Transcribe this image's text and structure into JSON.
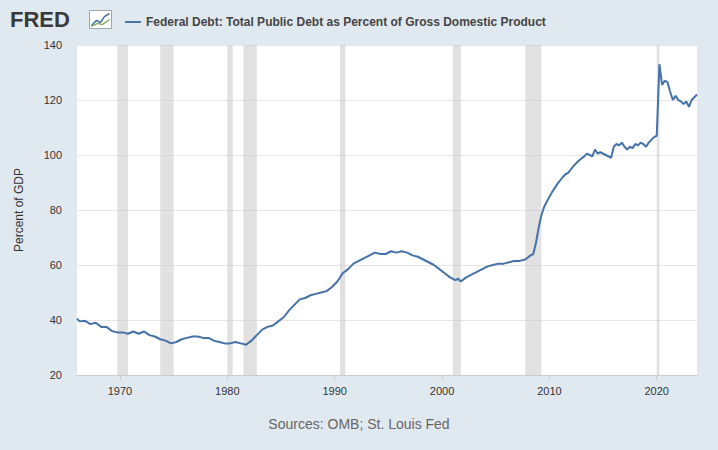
{
  "chart_data": {
    "type": "line",
    "logo": "FRED",
    "ylabel": "Percent of GDP",
    "source": "Sources: OMB; St. Louis Fed",
    "legend": "top-left",
    "grid": true,
    "xlim": [
      1966,
      2023.75
    ],
    "xticks": [
      1970,
      1980,
      1990,
      2000,
      2010,
      2020
    ],
    "ylim": [
      20,
      140
    ],
    "yticks": [
      20,
      40,
      60,
      80,
      100,
      120,
      140
    ],
    "recessions": [
      [
        1969.75,
        1970.75
      ],
      [
        1973.75,
        1975.0
      ],
      [
        1980.0,
        1980.5
      ],
      [
        1981.5,
        1982.75
      ],
      [
        1990.5,
        1991.0
      ],
      [
        2001.0,
        2001.75
      ],
      [
        2007.75,
        2009.25
      ],
      [
        2020.0,
        2020.25
      ]
    ],
    "x": [
      1966.0,
      1966.25,
      1966.75,
      1967.25,
      1967.75,
      1968.25,
      1968.75,
      1969.25,
      1969.75,
      1970.25,
      1970.75,
      1971.25,
      1971.75,
      1972.25,
      1972.75,
      1973.25,
      1973.75,
      1974.25,
      1974.75,
      1975.25,
      1975.75,
      1976.25,
      1976.75,
      1977.25,
      1977.75,
      1978.25,
      1978.75,
      1979.25,
      1979.75,
      1980.25,
      1980.75,
      1981.25,
      1981.75,
      1982.25,
      1982.75,
      1983.25,
      1983.75,
      1984.25,
      1984.75,
      1985.25,
      1985.75,
      1986.25,
      1986.75,
      1987.25,
      1987.75,
      1988.25,
      1988.75,
      1989.25,
      1989.75,
      1990.25,
      1990.75,
      1991.25,
      1991.75,
      1992.25,
      1992.75,
      1993.25,
      1993.75,
      1994.25,
      1994.75,
      1995.25,
      1995.75,
      1996.25,
      1996.75,
      1997.25,
      1997.75,
      1998.25,
      1998.75,
      1999.25,
      1999.75,
      2000.25,
      2000.75,
      2001.25,
      2001.5,
      2001.75,
      2002.25,
      2002.75,
      2003.25,
      2003.75,
      2004.25,
      2004.75,
      2005.25,
      2005.75,
      2006.25,
      2006.75,
      2007.25,
      2007.75,
      2008.25,
      2008.5,
      2008.75,
      2009.0,
      2009.25,
      2009.5,
      2009.75,
      2010.25,
      2010.75,
      2011.25,
      2011.5,
      2011.75,
      2012.25,
      2012.75,
      2013.25,
      2013.5,
      2013.75,
      2014.0,
      2014.25,
      2014.5,
      2014.75,
      2015.25,
      2015.75,
      2016.0,
      2016.25,
      2016.5,
      2016.75,
      2017.0,
      2017.25,
      2017.5,
      2017.75,
      2018.0,
      2018.25,
      2018.5,
      2018.75,
      2019.0,
      2019.25,
      2019.5,
      2019.75,
      2020.0,
      2020.25,
      2020.5,
      2020.75,
      2021.0,
      2021.25,
      2021.5,
      2021.75,
      2022.0,
      2022.25,
      2022.5,
      2022.75,
      2023.0,
      2023.25,
      2023.5,
      2023.75
    ],
    "series": [
      {
        "name": "Federal Debt: Total Public Debt as Percent of Gross Domestic Product",
        "color": "#4572a7",
        "values": [
          40.5,
          39.5,
          39.7,
          38.5,
          39.0,
          37.5,
          37.5,
          36.0,
          35.5,
          35.5,
          35.0,
          35.8,
          35.0,
          35.8,
          34.5,
          34.0,
          33.0,
          32.5,
          31.5,
          32.0,
          33.0,
          33.5,
          34.0,
          34.0,
          33.5,
          33.5,
          32.5,
          32.0,
          31.5,
          31.5,
          32.0,
          31.5,
          31.0,
          32.5,
          34.5,
          36.5,
          37.5,
          38.0,
          39.5,
          41.0,
          43.5,
          45.5,
          47.5,
          48.0,
          49.0,
          49.5,
          50.0,
          50.5,
          52.0,
          54.0,
          57.0,
          58.5,
          60.5,
          61.5,
          62.5,
          63.5,
          64.5,
          64.0,
          64.0,
          65.0,
          64.5,
          65.0,
          64.5,
          63.5,
          63.0,
          62.0,
          61.0,
          60.0,
          58.5,
          57.0,
          55.5,
          54.5,
          55.0,
          54.0,
          55.5,
          56.5,
          57.5,
          58.5,
          59.5,
          60.0,
          60.5,
          60.5,
          61.0,
          61.5,
          61.5,
          62.0,
          63.5,
          64.0,
          68.0,
          73.5,
          78.0,
          81.0,
          83.0,
          86.5,
          89.5,
          92.0,
          93.0,
          93.5,
          96.0,
          98.0,
          99.5,
          100.5,
          100.0,
          99.5,
          102.0,
          100.5,
          101.0,
          100.0,
          99.0,
          103.0,
          104.0,
          103.5,
          104.5,
          103.0,
          102.0,
          103.0,
          102.5,
          104.0,
          103.5,
          104.5,
          104.0,
          103.0,
          104.5,
          105.5,
          106.5,
          107.0,
          133.0,
          125.5,
          127.0,
          126.5,
          123.0,
          120.0,
          121.5,
          120.0,
          119.5,
          118.5,
          119.5,
          117.5,
          120.0,
          121.0,
          122.0
        ]
      }
    ]
  }
}
